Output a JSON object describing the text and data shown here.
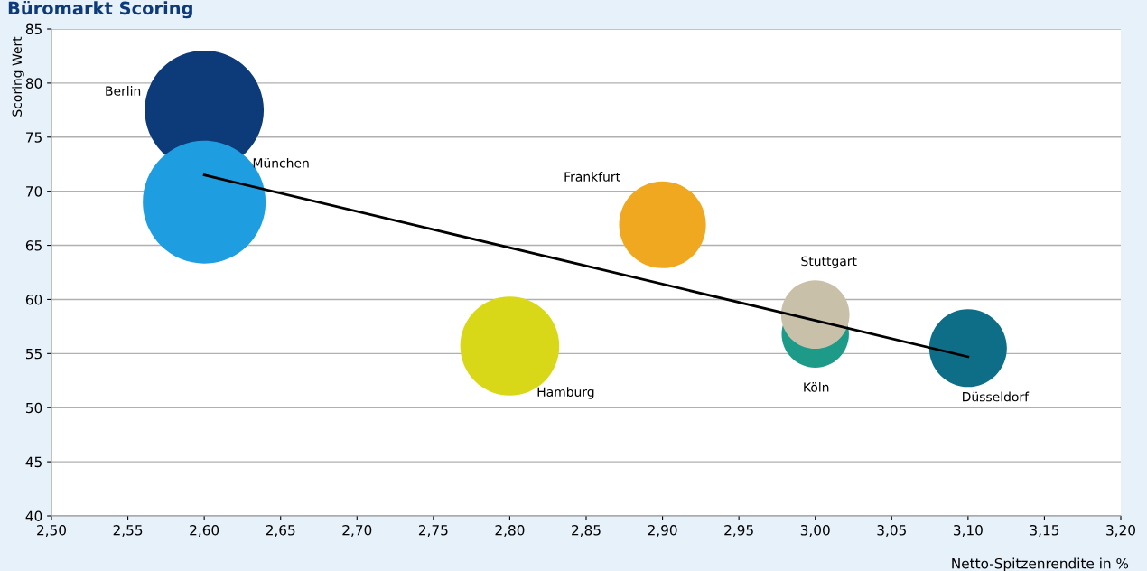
{
  "chart_data": {
    "type": "bubble",
    "title": "Büromarkt Scoring",
    "xlabel": "Netto-Spitzenrendite in %",
    "ylabel": "Scoring Wert",
    "series": [
      {
        "name": "Berlin",
        "color": "#0d3a78",
        "x": [
          2.6
        ],
        "values": [
          77.5
        ],
        "sizes": [
          0.94
        ]
      },
      {
        "name": "München",
        "color": "#1e9ee0",
        "x": [
          2.6
        ],
        "values": [
          69.0
        ],
        "sizes": [
          1
        ]
      },
      {
        "name": "Frankfurt",
        "color": "#f0a820",
        "x": [
          2.9
        ],
        "values": [
          66.9
        ],
        "sizes": [
          0.5
        ]
      },
      {
        "name": "Hamburg",
        "color": "#d8d818",
        "x": [
          2.8
        ],
        "values": [
          55.7
        ],
        "sizes": [
          0.65
        ]
      },
      {
        "name": "Köln",
        "color": "#1e9a88",
        "x": [
          3.0
        ],
        "values": [
          56.8
        ],
        "sizes": [
          0.3
        ]
      },
      {
        "name": "Stuttgart",
        "color": "#c8c0a8",
        "x": [
          3.0
        ],
        "values": [
          58.6
        ],
        "sizes": [
          0.31
        ]
      },
      {
        "name": "Düsseldorf",
        "color": "#0e6e88",
        "x": [
          3.1
        ],
        "values": [
          55.5
        ],
        "sizes": [
          0.4
        ]
      },
      {
        "type": "line",
        "color": "#000000",
        "x": [
          2.6,
          3.1
        ],
        "values": [
          71.5,
          54.7
        ]
      }
    ],
    "xlim": [
      2.5,
      3.2
    ],
    "ylim": [
      40,
      85
    ],
    "xticks": [
      {
        "value": 2.5,
        "label": "2,50"
      },
      {
        "value": 2.55,
        "label": "2,55"
      },
      {
        "value": 2.6,
        "label": "2,60"
      },
      {
        "value": 2.65,
        "label": "2,65"
      },
      {
        "value": 2.7,
        "label": "2,70"
      },
      {
        "value": 2.75,
        "label": "2,75"
      },
      {
        "value": 2.8,
        "label": "2,80"
      },
      {
        "value": 2.85,
        "label": "2,85"
      },
      {
        "value": 2.9,
        "label": "2,90"
      },
      {
        "value": 2.95,
        "label": "2,95"
      },
      {
        "value": 3.0,
        "label": "3,00"
      },
      {
        "value": 3.05,
        "label": "3,05"
      },
      {
        "value": 3.1,
        "label": "3,10"
      },
      {
        "value": 3.15,
        "label": "3,15"
      },
      {
        "value": 3.2,
        "label": "3,20"
      }
    ],
    "yticks": [
      40,
      45,
      50,
      55,
      60,
      65,
      70,
      75,
      80,
      85
    ],
    "grid": "y",
    "legend": false
  }
}
